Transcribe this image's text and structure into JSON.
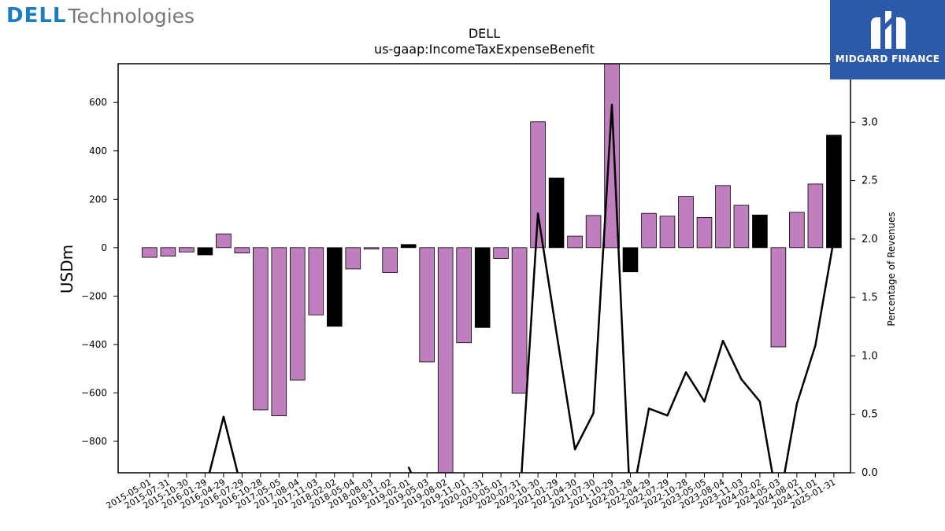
{
  "branding": {
    "dell_wordmark": "DELL",
    "dell_suffix": "Technologies",
    "partner_name": "MIDGARD FINANCE"
  },
  "chart_data": {
    "type": "bar",
    "title": "DELL",
    "subtitle": "us-gaap:IncomeTaxExpenseBenefit",
    "ylabel": "USDm",
    "y2label": "Percentage of Revenues",
    "ylim": [
      -930,
      760
    ],
    "y2lim": [
      0.0,
      3.5
    ],
    "yticks": [
      600,
      400,
      200,
      0,
      -200,
      -400,
      -600,
      -800
    ],
    "y2ticks": [
      "3.0",
      "2.5",
      "2.0",
      "1.5",
      "1.0",
      "0.5",
      "0.0"
    ],
    "colors": {
      "quarterly": "#bf7fbf",
      "annual": "#000000",
      "line": "#000000"
    },
    "categories": [
      "2015-05-01",
      "2015-07-31",
      "2015-10-30",
      "2016-01-29",
      "2016-04-29",
      "2016-07-29",
      "2016-10-28",
      "2017-05-05",
      "2017-08-04",
      "2017-11-03",
      "2018-02-02",
      "2018-05-04",
      "2018-08-03",
      "2018-11-02",
      "2019-02-01",
      "2019-05-03",
      "2019-08-02",
      "2019-11-01",
      "2020-01-31",
      "2020-05-01",
      "2020-07-31",
      "2020-10-30",
      "2021-01-29",
      "2021-04-30",
      "2021-07-30",
      "2021-10-29",
      "2022-01-28",
      "2022-04-29",
      "2022-07-29",
      "2022-10-28",
      "2023-05-05",
      "2023-08-04",
      "2023-11-03",
      "2024-02-02",
      "2024-05-03",
      "2024-08-02",
      "2024-11-01",
      "2025-01-31"
    ],
    "series": [
      {
        "values": [
          -40,
          -35,
          -18,
          -30,
          57,
          -22,
          -670,
          -695,
          -547,
          -278,
          -325,
          -88,
          -6,
          -103,
          13,
          -472,
          -1000,
          -393,
          -330,
          -45,
          -602,
          520,
          288,
          48,
          133,
          800,
          -100,
          142,
          130,
          212,
          125,
          257,
          175,
          135,
          -410,
          146,
          263,
          465
        ],
        "kinds": [
          "q",
          "q",
          "q",
          "a",
          "q",
          "q",
          "q",
          "q",
          "q",
          "q",
          "a",
          "q",
          "q",
          "q",
          "a",
          "q",
          "q",
          "q",
          "a",
          "q",
          "q",
          "q",
          "a",
          "q",
          "q",
          "q",
          "a",
          "q",
          "q",
          "q",
          "q",
          "q",
          "q",
          "a",
          "q",
          "q",
          "q",
          "a"
        ]
      },
      {
        "values": [
          null,
          null,
          null,
          -0.15,
          0.48,
          -0.15,
          null,
          null,
          null,
          null,
          null,
          null,
          null,
          null,
          0.05,
          -0.3,
          null,
          null,
          null,
          null,
          -0.3,
          2.22,
          1.2,
          0.2,
          0.51,
          3.15,
          -0.3,
          0.55,
          0.49,
          0.86,
          0.61,
          1.13,
          0.8,
          0.61,
          -0.3,
          0.59,
          1.09,
          2.0
        ]
      }
    ]
  }
}
